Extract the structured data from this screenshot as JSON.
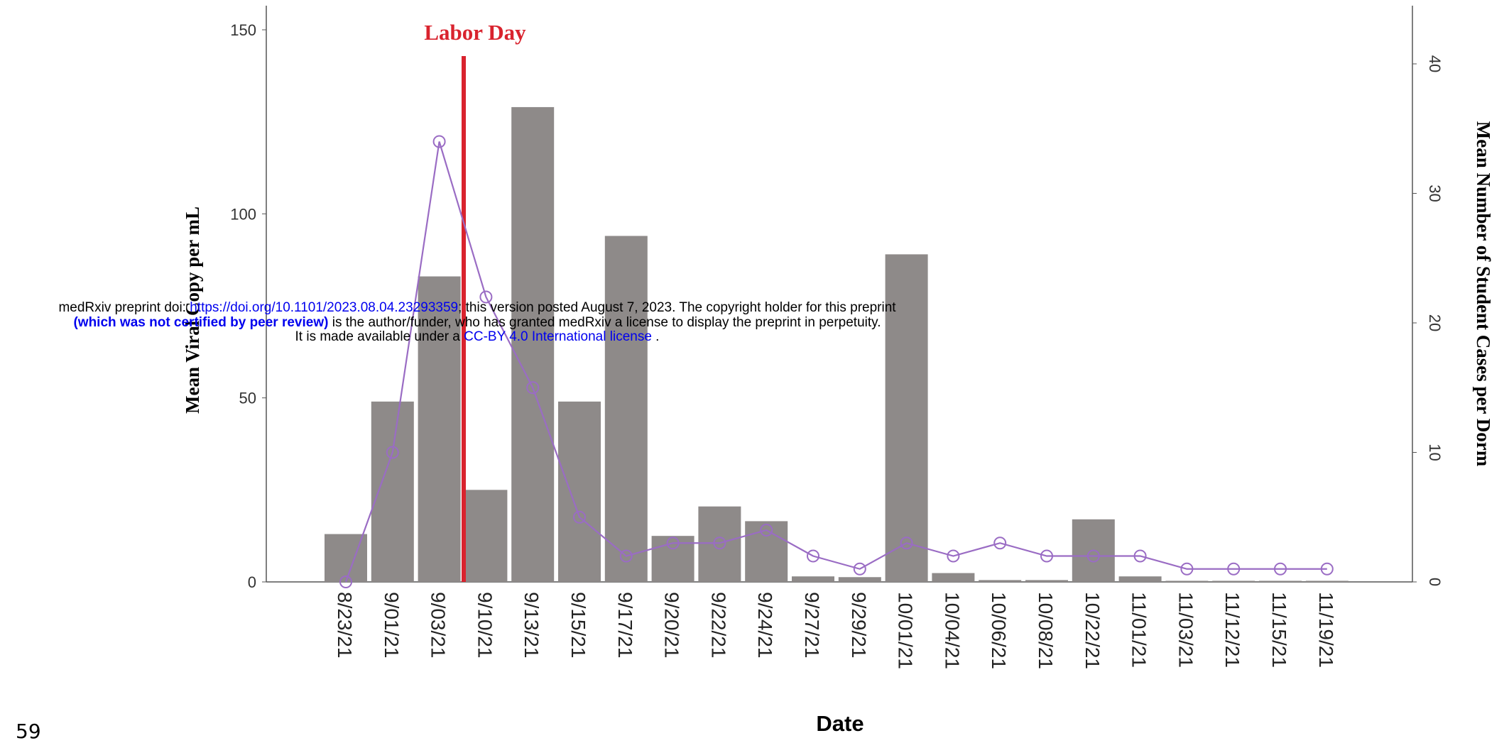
{
  "header": {
    "line1_prefix": "medRxiv preprint doi: ",
    "doi_link": "https://doi.org/10.1101/2023.08.04.23293359",
    "line1_suffix": "; this version posted August 7, 2023. The copyright holder for this preprint",
    "line2_bold": "(which was not certified by peer review)",
    "line2_suffix": " is the author/funder, who has granted medRxiv a license to display the preprint in perpetuity.",
    "line3_prefix": "It is made available under a ",
    "license_link": "CC-BY 4.0 International license",
    "line3_suffix": " ."
  },
  "page_number": "59",
  "chart_data": {
    "type": "bar",
    "x_label": "Date",
    "y_label": "Mean Viral Copy per mL",
    "y2_label": "Mean Number of Student Cases per Dorm",
    "categories": [
      "8/23/21",
      "9/01/21",
      "9/03/21",
      "9/10/21",
      "9/13/21",
      "9/15/21",
      "9/17/21",
      "9/20/21",
      "9/22/21",
      "9/24/21",
      "9/27/21",
      "9/29/21",
      "10/01/21",
      "10/04/21",
      "10/06/21",
      "10/08/21",
      "10/22/21",
      "11/01/21",
      "11/03/21",
      "11/12/21",
      "11/15/21",
      "11/19/21"
    ],
    "series": [
      {
        "type": "bar",
        "color": "#8e8a89",
        "values": [
          13,
          49,
          83,
          25,
          129,
          49,
          94,
          12.5,
          20.5,
          16.5,
          1.5,
          1.3,
          89,
          2.4,
          0.5,
          0.5,
          17,
          1.5,
          0.3,
          0.3,
          0.3,
          0.3
        ]
      },
      {
        "type": "line",
        "axis": "y2",
        "color": "#9a6cc4",
        "values": [
          0,
          10,
          34,
          22,
          15,
          5,
          2,
          3,
          3,
          4,
          2,
          1,
          3,
          2,
          3,
          2,
          2,
          2,
          1,
          1,
          1,
          1
        ]
      }
    ],
    "ylim": [
      0,
      150
    ],
    "yticks": [
      0,
      50,
      100,
      150
    ],
    "y2lim": [
      0,
      40
    ],
    "y2ticks": [
      0,
      10,
      20,
      30,
      40
    ],
    "annotations": [
      {
        "text": "Labor Day",
        "color": "#d9232e"
      }
    ]
  }
}
